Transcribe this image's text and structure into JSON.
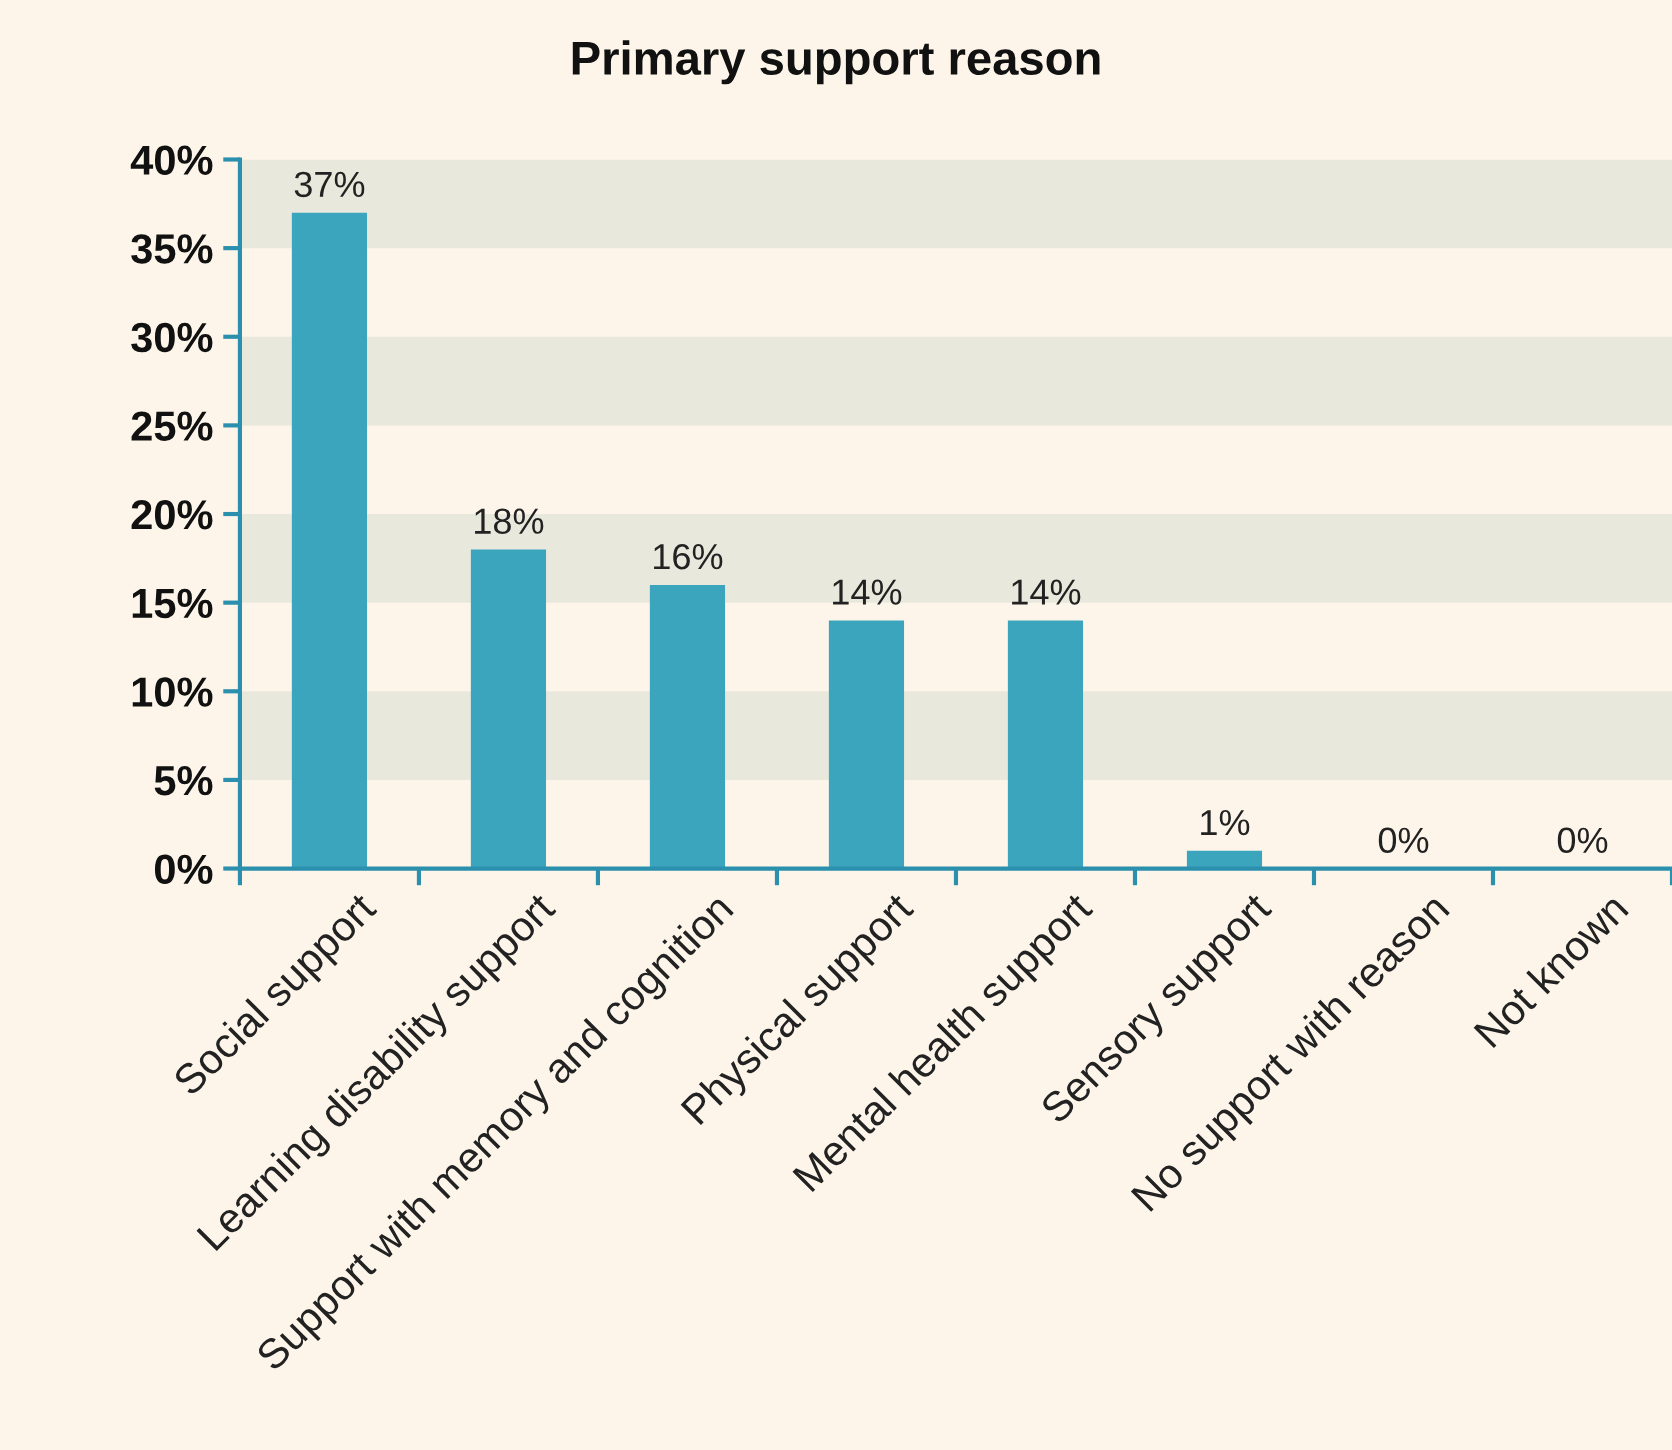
{
  "chart_data": {
    "type": "bar",
    "title": "Primary support reason",
    "categories": [
      "Social support",
      "Learning disability support",
      "Support with memory and cognition",
      "Physical support",
      "Mental health support",
      "Sensory support",
      "No support with reason",
      "Not known"
    ],
    "values": [
      37,
      18,
      16,
      14,
      14,
      1,
      0,
      0
    ],
    "value_labels": [
      "37%",
      "18%",
      "16%",
      "14%",
      "14%",
      "1%",
      "0%",
      "0%"
    ],
    "color": "#3ba5bd",
    "ylim": [
      0,
      40
    ],
    "yticks": [
      {
        "value": 0,
        "label": "0%"
      },
      {
        "value": 5,
        "label": "5%"
      },
      {
        "value": 10,
        "label": "10%"
      },
      {
        "value": 15,
        "label": "15%"
      },
      {
        "value": 20,
        "label": "20%"
      },
      {
        "value": 25,
        "label": "25%"
      },
      {
        "value": 30,
        "label": "30%"
      },
      {
        "value": 35,
        "label": "35%"
      },
      {
        "value": 40,
        "label": "40%"
      }
    ],
    "bands": [
      {
        "axis": "y",
        "from": 5,
        "to": 10,
        "color": "#e9e8dc"
      },
      {
        "axis": "y",
        "from": 15,
        "to": 20,
        "color": "#e9e8dc"
      },
      {
        "axis": "y",
        "from": 25,
        "to": 30,
        "color": "#e9e8dc"
      },
      {
        "axis": "y",
        "from": 35,
        "to": 40,
        "color": "#e9e8dc"
      }
    ],
    "grid": false
  }
}
